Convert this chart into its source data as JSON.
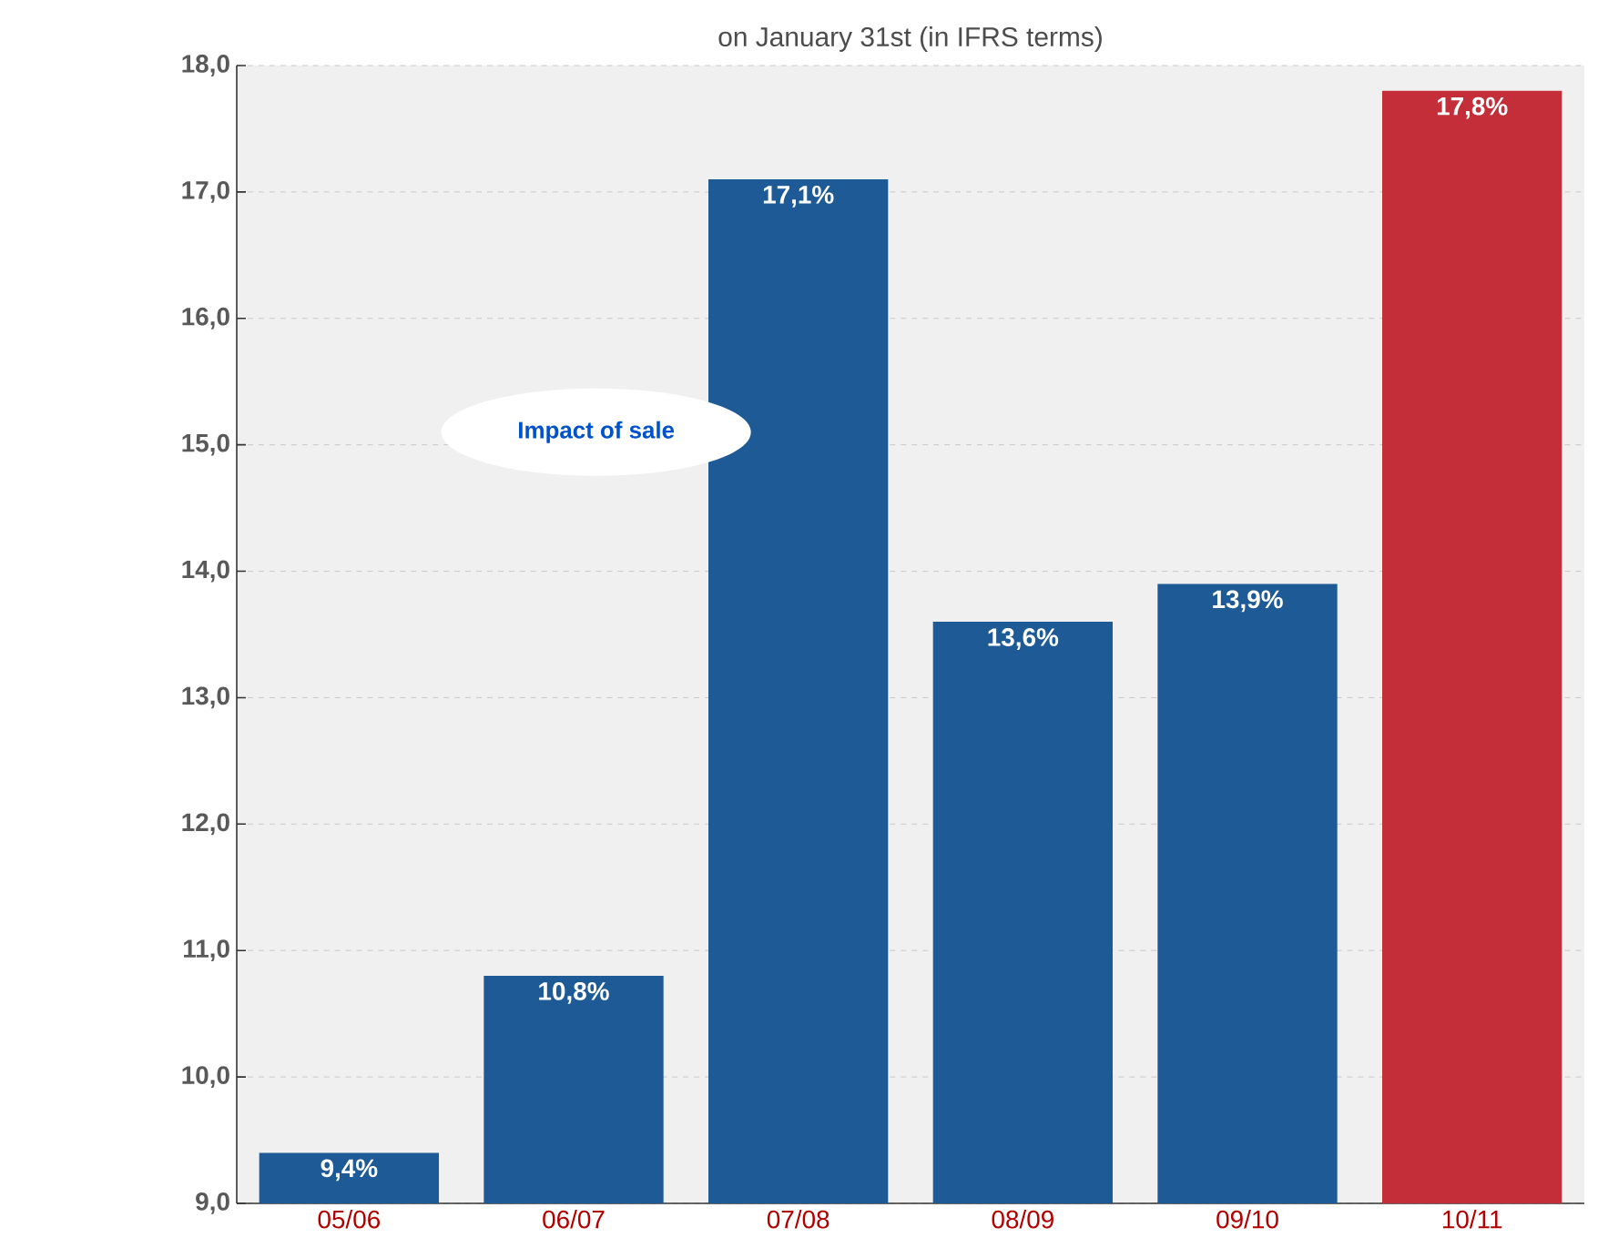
{
  "chart_data": {
    "type": "bar",
    "title": "on January 31st (in IFRS terms)",
    "categories": [
      "05/06",
      "06/07",
      "07/08",
      "08/09",
      "09/10",
      "10/11"
    ],
    "values": [
      9.4,
      10.8,
      17.1,
      13.6,
      13.9,
      17.8
    ],
    "colors": [
      "#1d5a96",
      "#1d5a96",
      "#1d5a96",
      "#1d5a96",
      "#1d5a96",
      "#c42e38"
    ],
    "value_labels": [
      "9,4%",
      "10,8%",
      "17,1%",
      "13,6%",
      "13,9%",
      "17,8%"
    ],
    "ylim": [
      9,
      18
    ],
    "yticks": [
      {
        "value": 9,
        "label": "9,0"
      },
      {
        "value": 10,
        "label": "10,0"
      },
      {
        "value": 11,
        "label": "11,0"
      },
      {
        "value": 12,
        "label": "12,0"
      },
      {
        "value": 13,
        "label": "13,0"
      },
      {
        "value": 14,
        "label": "14,0"
      },
      {
        "value": 15,
        "label": "15,0"
      },
      {
        "value": 16,
        "label": "16,0"
      },
      {
        "value": 17,
        "label": "17,0"
      },
      {
        "value": 18,
        "label": "18,0"
      }
    ],
    "grid": "y",
    "annotations": [
      "Impact of sale"
    ]
  }
}
